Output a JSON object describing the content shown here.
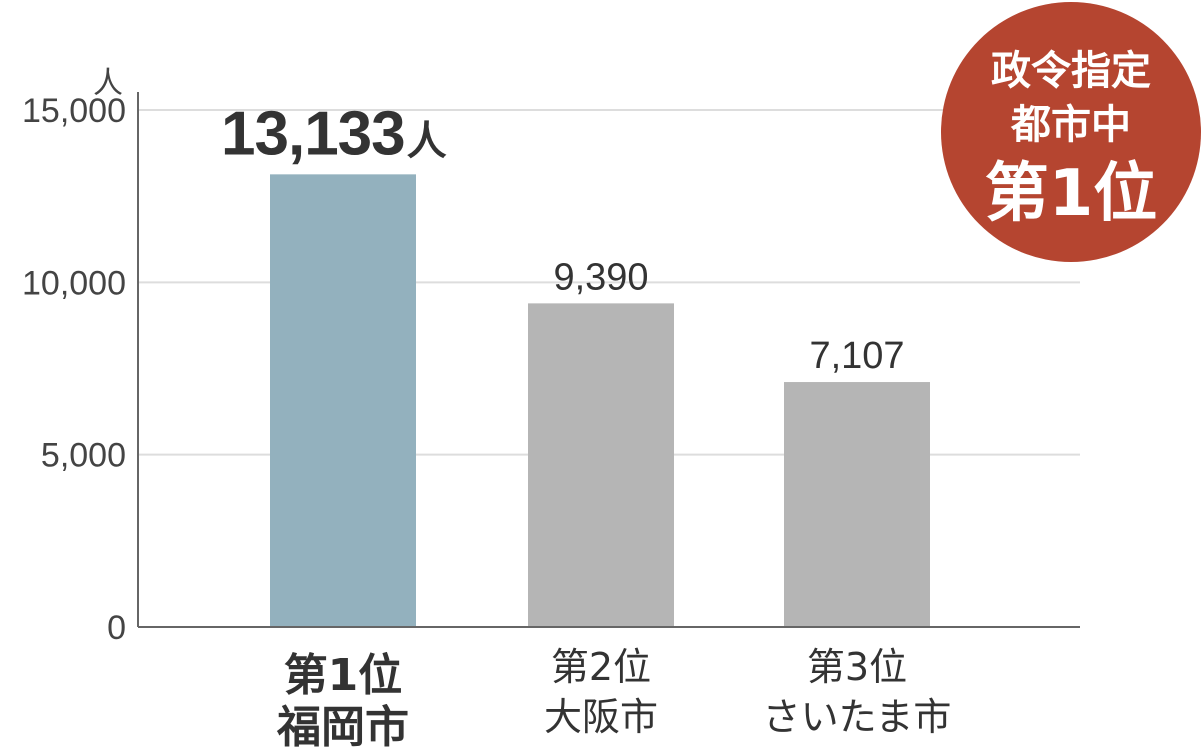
{
  "chart_data": {
    "type": "bar",
    "unit": "人",
    "categories": [
      {
        "rank": "第1位",
        "city": "福岡市"
      },
      {
        "rank": "第2位",
        "city": "大阪市"
      },
      {
        "rank": "第3位",
        "city": "さいたま市"
      }
    ],
    "values": [
      13133,
      9390,
      7107
    ],
    "value_labels": [
      "13,133",
      "9,390",
      "7,107"
    ],
    "value_label_unit": "人",
    "yticks": [
      "0",
      "5,000",
      "10,000",
      "15,000"
    ],
    "ytick_values": [
      0,
      5000,
      10000,
      15000
    ],
    "ylim": [
      0,
      15000
    ],
    "grid": true,
    "colors": {
      "highlight": "#93b1be",
      "default": "#b5b5b5",
      "grid": "#dddddd",
      "axis": "#666666",
      "badge": "#b54530"
    },
    "badge": {
      "lines": [
        "政令指定",
        "都市中",
        "第1位"
      ]
    }
  }
}
